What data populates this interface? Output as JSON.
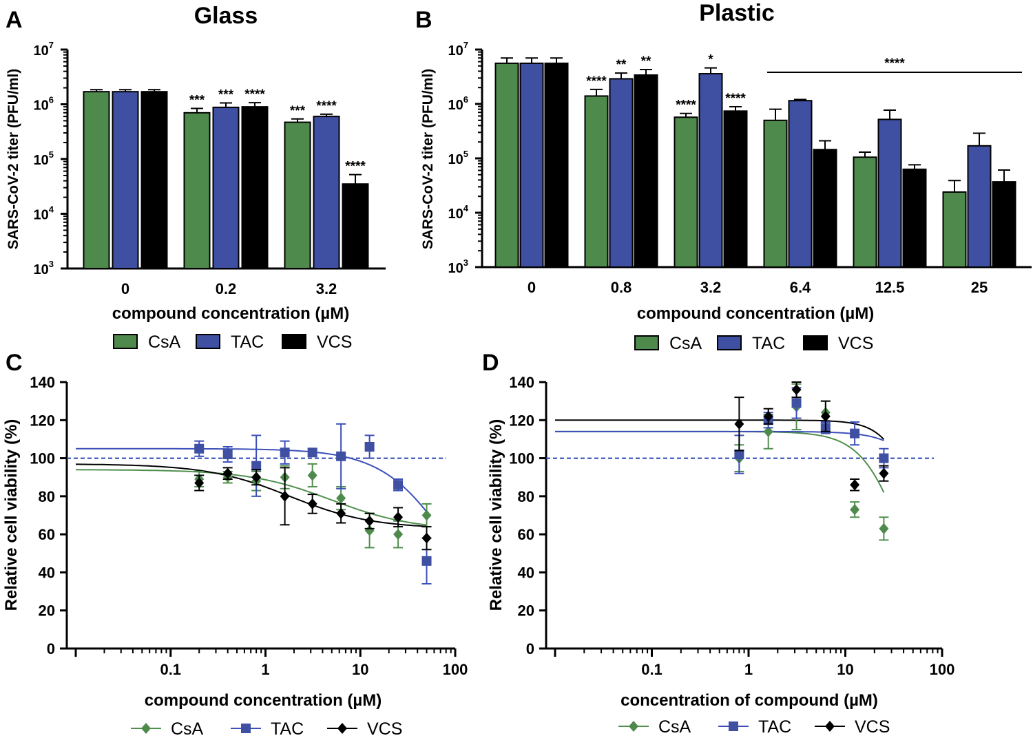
{
  "colors": {
    "csa": "#4e8a4b",
    "tac": "#3f50a3",
    "vcs": "#000000",
    "csa_line": "#4f8f4c",
    "tac_line": "#3b4fb8",
    "ref_line": "#2a44b0"
  },
  "legend_labels": [
    "CsA",
    "TAC",
    "VCS"
  ],
  "chart_data": [
    {
      "panel": "A",
      "type": "bar",
      "title": "Glass",
      "ylabel": "SARS-CoV-2 titer (PFU/ml)",
      "xlabel": "compound concentration (µM)",
      "y_scale": "log10",
      "ylim": [
        1000,
        10000000
      ],
      "ytick_exponents": [
        "3",
        "4",
        "5",
        "6",
        "7"
      ],
      "categories": [
        "0",
        "0.2",
        "3.2"
      ],
      "series": [
        {
          "name": "CsA",
          "values": [
            1700000,
            700000,
            470000
          ],
          "err": [
            150000,
            140000,
            70000
          ]
        },
        {
          "name": "TAC",
          "values": [
            1700000,
            880000,
            600000
          ],
          "err": [
            150000,
            180000,
            60000
          ]
        },
        {
          "name": "VCS",
          "values": [
            1700000,
            900000,
            35000
          ],
          "err": [
            150000,
            170000,
            17000
          ]
        }
      ],
      "annotations": [
        {
          "cat": 1,
          "series": 0,
          "text": "***"
        },
        {
          "cat": 1,
          "series": 1,
          "text": "***"
        },
        {
          "cat": 1,
          "series": 2,
          "text": "****"
        },
        {
          "cat": 2,
          "series": 0,
          "text": "***"
        },
        {
          "cat": 2,
          "series": 1,
          "text": "****"
        },
        {
          "cat": 2,
          "series": 2,
          "text": "****"
        }
      ]
    },
    {
      "panel": "B",
      "type": "bar",
      "title": "Plastic",
      "ylabel": "SARS-CoV-2 titer (PFU/ml)",
      "xlabel": "compound concentration (µM)",
      "y_scale": "log10",
      "ylim": [
        1000,
        10000000
      ],
      "ytick_exponents": [
        "3",
        "4",
        "5",
        "6",
        "7"
      ],
      "categories": [
        "0",
        "0.8",
        "3.2",
        "6.4",
        "12.5",
        "25"
      ],
      "series": [
        {
          "name": "CsA",
          "values": [
            5600000,
            1400000,
            570000,
            500000,
            105000,
            24000
          ],
          "err": [
            1400000,
            450000,
            100000,
            300000,
            25000,
            15000
          ]
        },
        {
          "name": "TAC",
          "values": [
            5600000,
            2900000,
            3600000,
            1150000,
            520000,
            170000
          ],
          "err": [
            1400000,
            800000,
            1000000,
            60000,
            250000,
            120000
          ]
        },
        {
          "name": "VCS",
          "values": [
            5600000,
            3400000,
            740000,
            145000,
            63000,
            37000
          ],
          "err": [
            1400000,
            900000,
            150000,
            65000,
            13000,
            24000
          ]
        }
      ],
      "annotations": [
        {
          "cat": 1,
          "series": 0,
          "text": "****"
        },
        {
          "cat": 1,
          "series": 1,
          "text": "**"
        },
        {
          "cat": 1,
          "series": 2,
          "text": "**"
        },
        {
          "cat": 2,
          "series": 0,
          "text": "****"
        },
        {
          "cat": 2,
          "series": 1,
          "text": "*"
        },
        {
          "cat": 2,
          "series": 2,
          "text": "****"
        }
      ],
      "bracket_label": "****",
      "bracket_span": [
        3,
        5
      ]
    },
    {
      "panel": "C",
      "type": "scatter",
      "ylabel": "Relative cell viability (%)",
      "xlabel": "compound concentration (µM)",
      "x_scale": "log10",
      "xlim": [
        0.01,
        100
      ],
      "ylim": [
        0,
        140
      ],
      "xticks": [
        "0.1",
        "1",
        "10",
        "100"
      ],
      "yticks": [
        "0",
        "20",
        "40",
        "60",
        "80",
        "100",
        "120",
        "140"
      ],
      "reference_line": 100,
      "series": [
        {
          "name": "CsA",
          "marker": "diamond",
          "x": [
            0.2,
            0.4,
            0.8,
            1.6,
            3.125,
            6.25,
            12.5,
            25,
            50
          ],
          "y": [
            89,
            90,
            88,
            90,
            91,
            79,
            62,
            60,
            70
          ],
          "err": [
            4,
            3,
            5,
            6,
            6,
            6,
            9,
            7,
            6
          ],
          "fit": {
            "top": 94,
            "bottom": 62,
            "ec50": 5,
            "hill": 1
          }
        },
        {
          "name": "TAC",
          "marker": "square",
          "x": [
            0.2,
            0.4,
            0.8,
            1.6,
            3.125,
            6.25,
            12.5,
            25,
            50
          ],
          "y": [
            105,
            102,
            96,
            103,
            103,
            101,
            106,
            86,
            46
          ],
          "err": [
            4,
            4,
            16,
            6,
            2,
            17,
            6,
            3,
            12
          ],
          "fit": {
            "top": 105,
            "bottom": 0,
            "ec50": 95,
            "hill": 1.2
          }
        },
        {
          "name": "VCS",
          "marker": "diamond",
          "x": [
            0.2,
            0.4,
            0.8,
            1.6,
            3.125,
            6.25,
            12.5,
            25,
            50
          ],
          "y": [
            87,
            92,
            90,
            80,
            76,
            71,
            67,
            69,
            58
          ],
          "err": [
            4,
            3,
            4,
            15,
            5,
            5,
            4,
            5,
            6
          ],
          "fit": {
            "top": 97,
            "bottom": 63,
            "ec50": 1.8,
            "hill": 1
          }
        }
      ]
    },
    {
      "panel": "D",
      "type": "scatter",
      "ylabel": "Relative cell viability (%)",
      "xlabel": "concentration of compound (µM)",
      "x_scale": "log10",
      "xlim": [
        0.01,
        100
      ],
      "ylim": [
        0,
        140
      ],
      "xticks": [
        "0.1",
        "1",
        "10",
        "100"
      ],
      "yticks": [
        "0",
        "20",
        "40",
        "60",
        "80",
        "100",
        "120",
        "140"
      ],
      "reference_line": 100,
      "series": [
        {
          "name": "CsA",
          "marker": "diamond",
          "x": [
            0.8,
            1.6,
            3.125,
            6.25,
            12.5,
            25
          ],
          "y": [
            100,
            114,
            127,
            124,
            73,
            63
          ],
          "err": [
            7,
            9,
            12,
            6,
            4,
            6
          ],
          "fit": {
            "top": 114,
            "bottom": 0,
            "ec50": 40,
            "hill": 2
          }
        },
        {
          "name": "TAC",
          "marker": "square",
          "x": [
            0.8,
            1.6,
            3.125,
            6.25,
            12.5,
            25
          ],
          "y": [
            102,
            120,
            129,
            116,
            113,
            100
          ],
          "err": [
            10,
            4,
            8,
            3,
            6,
            5
          ],
          "fit": {
            "top": 114,
            "bottom": 0,
            "ec50": 120,
            "hill": 2
          }
        },
        {
          "name": "VCS",
          "marker": "diamond",
          "x": [
            0.8,
            1.6,
            3.125,
            6.25,
            12.5,
            25
          ],
          "y": [
            118,
            122,
            136,
            122,
            86,
            92
          ],
          "err": [
            14,
            4,
            4,
            8,
            3,
            4
          ],
          "fit": {
            "top": 120,
            "bottom": 0,
            "ec50": 65,
            "hill": 2.5
          }
        }
      ]
    }
  ]
}
